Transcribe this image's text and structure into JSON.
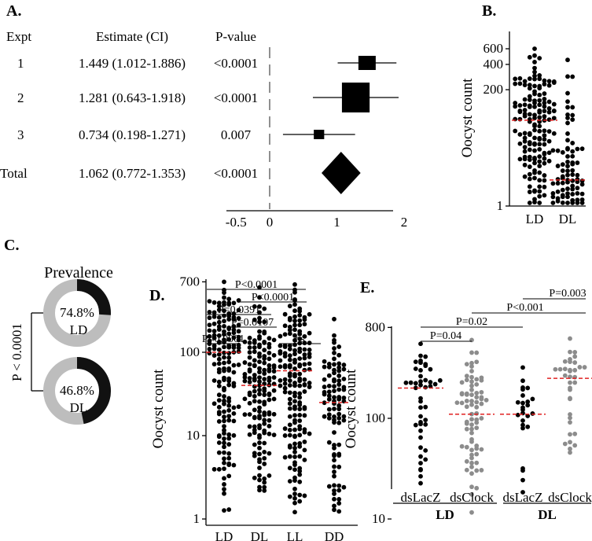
{
  "chart_data": [
    {
      "panel": "A.",
      "type": "forest",
      "headers": [
        "Expt",
        "Estimate (CI)",
        "P-value"
      ],
      "rows": [
        {
          "expt": "1",
          "estimate": 1.449,
          "lo": 1.012,
          "hi": 1.886,
          "label": "1.449 (1.012-1.886)",
          "p": "<0.0001",
          "weight": 1
        },
        {
          "expt": "2",
          "estimate": 1.281,
          "lo": 0.643,
          "hi": 1.918,
          "label": "1.281 (0.643-1.918)",
          "p": "<0.0001",
          "weight": 1.6
        },
        {
          "expt": "3",
          "estimate": 0.734,
          "lo": 0.198,
          "hi": 1.271,
          "label": "0.734 (0.198-1.271)",
          "p": "0.007",
          "weight": 0.6
        }
      ],
      "total": {
        "expt": "Total",
        "estimate": 1.062,
        "lo": 0.772,
        "hi": 1.353,
        "label": "1.062 (0.772-1.353)",
        "p": "<0.0001"
      },
      "xticks": [
        "-0.5",
        "0",
        "1",
        "2"
      ],
      "xlim": [
        -0.5,
        2
      ]
    },
    {
      "panel": "B.",
      "type": "scatter",
      "ylabel": "Oocyst count",
      "yticks": [
        "600",
        "400",
        "200",
        "1"
      ],
      "groups": [
        {
          "name": "LD",
          "median": 80,
          "max": 600,
          "n": 170,
          "color": "#000000"
        },
        {
          "name": "DL",
          "median": 8,
          "max": 450,
          "n": 90,
          "color": "#000000"
        }
      ]
    },
    {
      "panel": "C.",
      "type": "pie",
      "title": "Prevalence",
      "stat": "P < 0.0001",
      "donuts": [
        {
          "name": "LD",
          "value": 74.8,
          "label": "74.8%"
        },
        {
          "name": "DL",
          "value": 46.8,
          "label": "46.8%"
        }
      ]
    },
    {
      "panel": "D.",
      "type": "scatter",
      "ylabel": "Oocyst count",
      "yticks": [
        "700",
        "100",
        "10",
        "1"
      ],
      "groups": [
        {
          "name": "LD",
          "median": 100,
          "max": 700,
          "n": 200
        },
        {
          "name": "DL",
          "median": 40,
          "max": 600,
          "n": 170
        },
        {
          "name": "LL",
          "median": 60,
          "max": 650,
          "n": 190
        },
        {
          "name": "DD",
          "median": 25,
          "max": 250,
          "n": 100
        }
      ],
      "comparisons": [
        {
          "label": "P<0.0001",
          "a": 0,
          "b": 2.3
        },
        {
          "label": "P<0.0001",
          "a": 0.9,
          "b": 2.3
        },
        {
          "label": "P=0.0391",
          "a": 0,
          "b": 1.3
        },
        {
          "label": "P=0.0107",
          "a": 0.3,
          "b": 1.5
        },
        {
          "label": "P<0.0001",
          "a": 0,
          "b": 1
        },
        {
          "label": "ns",
          "a": 2,
          "b": 3
        }
      ]
    },
    {
      "panel": "E.",
      "type": "scatter",
      "ylabel": "Oocyst count",
      "yticks": [
        "800",
        "100",
        "10"
      ],
      "groups": [
        {
          "name": "dsLacZ",
          "cond": "LD",
          "median": 200,
          "max": 550,
          "min": 13,
          "n": 45,
          "color": "#000000"
        },
        {
          "name": "dsClock",
          "cond": "LD",
          "median": 110,
          "max": 600,
          "min": 11,
          "n": 75,
          "color": "#8c8c8c"
        },
        {
          "name": "dsLacZ",
          "cond": "DL",
          "median": 110,
          "max": 320,
          "min": 18,
          "n": 25,
          "color": "#000000"
        },
        {
          "name": "dsClock",
          "cond": "DL",
          "median": 250,
          "max": 620,
          "min": 25,
          "n": 35,
          "color": "#8c8c8c"
        }
      ],
      "conditions": [
        "LD",
        "DL"
      ],
      "comparisons": [
        {
          "label": "P=0.04",
          "a": 0,
          "b": 1
        },
        {
          "label": "P=0.02",
          "a": 0,
          "b": 2
        },
        {
          "label": "P<0.001",
          "a": 1,
          "b": 3.3
        },
        {
          "label": "P=0.003",
          "a": 2,
          "b": 3.3
        }
      ]
    }
  ],
  "colors": {
    "median": "#e02020",
    "dark": "#111111",
    "light": "#bdbdbd"
  }
}
